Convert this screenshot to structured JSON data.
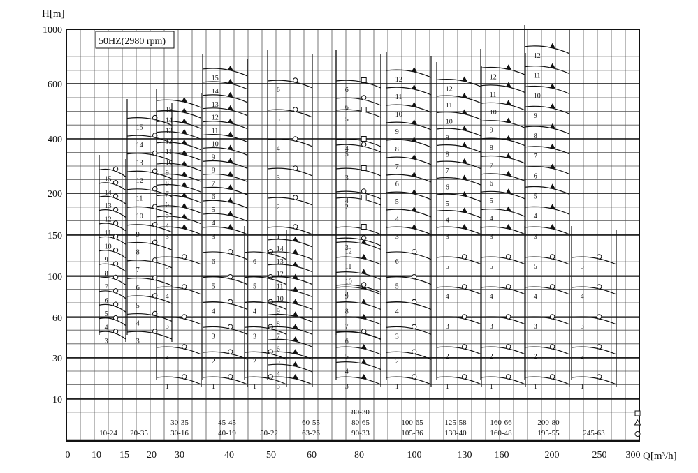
{
  "chart_data": {
    "type": "line",
    "title": "50HZ(2980 rpm)",
    "ylabel": "H[m]",
    "xlabel": "Q[m³/h]",
    "y_ticks": [
      "10",
      "30",
      "60",
      "100",
      "150",
      "200",
      "400",
      "600",
      "1000"
    ],
    "x_ticks": [
      "0",
      "10",
      "15",
      "20",
      "30",
      "40",
      "50",
      "60",
      "80",
      "100",
      "130",
      "160",
      "200",
      "250",
      "300"
    ],
    "grid": true,
    "pumps": [
      {
        "label": "10-24",
        "marker": "circle",
        "stages": [
          "3",
          "4",
          "5",
          "6",
          "7",
          "8",
          "9",
          "10",
          "11",
          "12",
          "13",
          "14",
          "15"
        ]
      },
      {
        "label": "20-35",
        "marker": "circle",
        "stages": [
          "3",
          "4",
          "5",
          "6",
          "7",
          "8",
          "9",
          "10",
          "11",
          "12",
          "13",
          "14",
          "15"
        ]
      },
      {
        "label": "30-16",
        "marker": "circle",
        "stages": [
          "1",
          "2",
          "3",
          "4",
          "5"
        ]
      },
      {
        "label": "30-35",
        "marker": "triangle",
        "stages": [
          "3",
          "4",
          "5",
          "6",
          "7",
          "8",
          "9",
          "10",
          "11",
          "12",
          "13",
          "14",
          "15"
        ]
      },
      {
        "label": "40-19",
        "marker": "circle",
        "stages": [
          "1",
          "2",
          "3",
          "4",
          "5",
          "6"
        ]
      },
      {
        "label": "45-45",
        "marker": "triangle",
        "stages": [
          "3",
          "4",
          "5",
          "6",
          "7",
          "8",
          "9",
          "10",
          "11",
          "12",
          "13",
          "14",
          "15"
        ]
      },
      {
        "label": "50-22",
        "marker": "circle",
        "stages": [
          "1",
          "2",
          "3",
          "4",
          "5",
          "6"
        ]
      },
      {
        "label": "60-55",
        "marker": "triangle",
        "stages": [
          "3",
          "4",
          "5",
          "6",
          "7",
          "8",
          "9",
          "10",
          "11",
          "12",
          "13",
          "14"
        ]
      },
      {
        "label": "63-26",
        "marker": "circle",
        "stages": [
          "1",
          "2",
          "3",
          "4",
          "5",
          "6"
        ]
      },
      {
        "label": "80-65",
        "marker": "triangle",
        "stages": [
          "3",
          "4",
          "5",
          "6",
          "7",
          "8",
          "9",
          "10",
          "11",
          "12"
        ]
      },
      {
        "label": "80-30",
        "marker": "square",
        "stages": [
          "1",
          "2",
          "3",
          "4",
          "5",
          "6"
        ]
      },
      {
        "label": "90-33",
        "marker": "circle",
        "stages": [
          "1",
          "2",
          "3",
          "4",
          "5",
          "6"
        ]
      },
      {
        "label": "105-36",
        "marker": "circle",
        "stages": [
          "1",
          "2",
          "3",
          "4",
          "5",
          "6"
        ]
      },
      {
        "label": "100-65",
        "marker": "triangle",
        "stages": [
          "3",
          "4",
          "5",
          "6",
          "7",
          "8",
          "9",
          "10",
          "11",
          "12"
        ]
      },
      {
        "label": "130-40",
        "marker": "circle",
        "stages": [
          "1",
          "2",
          "3",
          "4",
          "5"
        ]
      },
      {
        "label": "125-58",
        "marker": "triangle",
        "stages": [
          "3",
          "4",
          "5",
          "6",
          "7",
          "8",
          "9",
          "10",
          "11",
          "12"
        ]
      },
      {
        "label": "160-48",
        "marker": "circle",
        "stages": [
          "1",
          "2",
          "3",
          "4",
          "5"
        ]
      },
      {
        "label": "160-66",
        "marker": "triangle",
        "stages": [
          "3",
          "4",
          "5",
          "6",
          "7",
          "8",
          "9",
          "10",
          "11",
          "12"
        ]
      },
      {
        "label": "195-55",
        "marker": "circle",
        "stages": [
          "1",
          "2",
          "3",
          "4",
          "5"
        ]
      },
      {
        "label": "200-80",
        "marker": "triangle",
        "stages": [
          "3",
          "4",
          "5",
          "6",
          "7",
          "8",
          "9",
          "10",
          "11",
          "12"
        ]
      },
      {
        "label": "245-63",
        "marker": "circle",
        "stages": [
          "1",
          "2",
          "3",
          "4",
          "5"
        ]
      }
    ],
    "bottom_labels": [
      "10-24",
      "20-35",
      "30-35",
      "30-16",
      "45-45",
      "40-19",
      "50-22",
      "60-55",
      "63-26",
      "80-30",
      "80-65",
      "90-33",
      "100-65",
      "105-36",
      "125-58",
      "130-40",
      "160-66",
      "160-48",
      "200-80",
      "195-55",
      "245-63"
    ],
    "legend_markers": [
      "square",
      "triangle",
      "circle"
    ],
    "legend_position": "bottom-right"
  }
}
